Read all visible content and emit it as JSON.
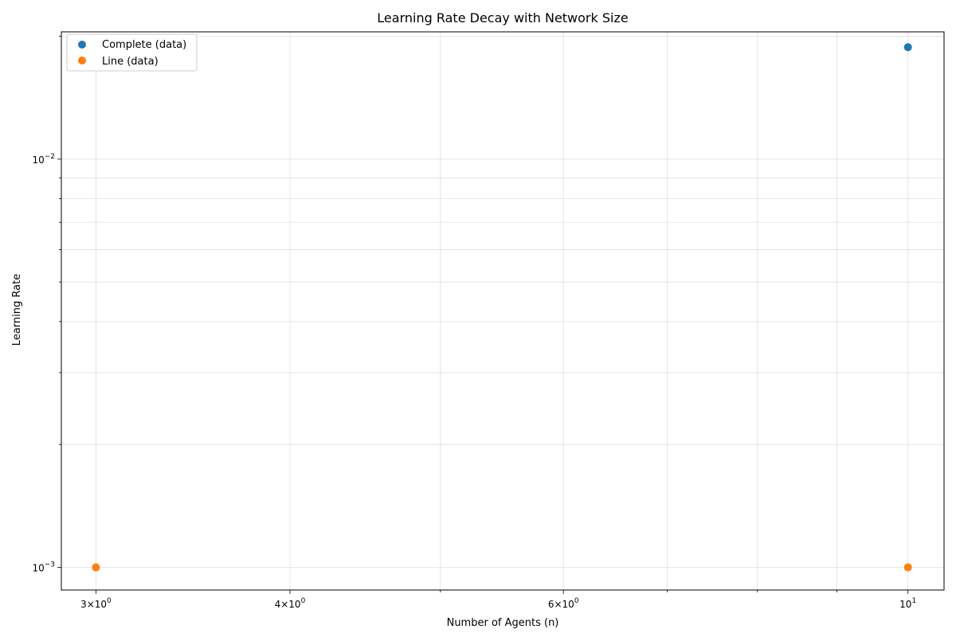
{
  "chart_data": {
    "type": "scatter",
    "title": "Learning Rate Decay with Network Size",
    "xlabel": "Number of Agents (n)",
    "ylabel": "Learning Rate",
    "xscale": "log",
    "yscale": "log",
    "xlim": [
      2.85,
      10.55
    ],
    "ylim": [
      0.00088,
      0.0205
    ],
    "grid": true,
    "legend_position": "top-left",
    "x_ticks": [
      {
        "value": 3,
        "base": "3×10",
        "exp": "0"
      },
      {
        "value": 4,
        "base": "4×10",
        "exp": "0"
      },
      {
        "value": 6,
        "base": "6×10",
        "exp": "0"
      },
      {
        "value": 10,
        "base": "10",
        "exp": "1"
      }
    ],
    "x_minor_ticks": [
      5,
      7,
      8,
      9
    ],
    "y_ticks": [
      {
        "value": 0.001,
        "base": "10",
        "exp": "−3"
      },
      {
        "value": 0.01,
        "base": "10",
        "exp": "−2"
      }
    ],
    "y_minor_ticks": [
      0.002,
      0.003,
      0.004,
      0.005,
      0.006,
      0.007,
      0.008,
      0.009,
      0.02
    ],
    "series": [
      {
        "name": "Complete (data)",
        "color": "#1f77b4",
        "x": [
          10
        ],
        "y": [
          0.0188
        ]
      },
      {
        "name": "Line (data)",
        "color": "#ff7f0e",
        "x": [
          3,
          10
        ],
        "y": [
          0.001,
          0.001
        ]
      }
    ]
  }
}
